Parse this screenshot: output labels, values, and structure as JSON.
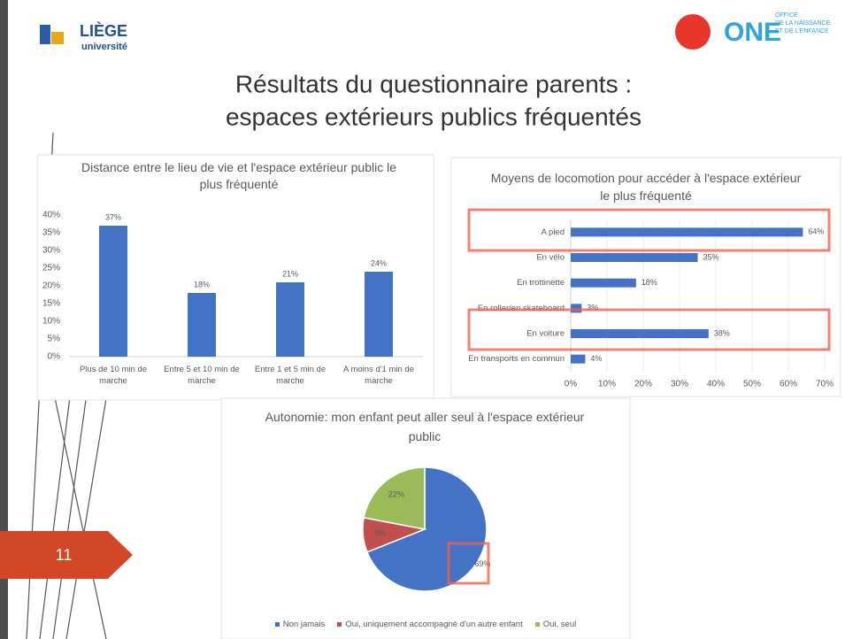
{
  "slide": {
    "logo_left": {
      "name": "LIÈGE",
      "sub": "université"
    },
    "logo_right": {
      "name": "ONE",
      "lines": [
        "OFFICE",
        "DE LA NAISSANCE",
        "ET DE L'ENFANCE"
      ]
    },
    "title_lines": [
      "Résultats du questionnaire parents :",
      "espaces extérieurs publics fréquentés"
    ],
    "number": "11"
  },
  "chart_data": [
    {
      "type": "bar",
      "title": "Distance entre le lieu de vie et l'espace extérieur public le plus fréquenté",
      "categories": [
        "Plus de 10 min de marche",
        "Entre 5 et 10 min de marche",
        "Entre 1 et 5 min de marche",
        "A moins d'1 min de marche"
      ],
      "values": [
        37,
        18,
        21,
        24
      ],
      "value_labels": [
        "37%",
        "18%",
        "21%",
        "24%"
      ],
      "color": "#4472c4",
      "ylim": [
        0,
        40
      ],
      "yticks": [
        {
          "value": 0,
          "label": "0%"
        },
        {
          "value": 5,
          "label": "5%"
        },
        {
          "value": 10,
          "label": "10%"
        },
        {
          "value": 15,
          "label": "15%"
        },
        {
          "value": 20,
          "label": "20%"
        },
        {
          "value": 25,
          "label": "25%"
        },
        {
          "value": 30,
          "label": "30%"
        },
        {
          "value": 35,
          "label": "35%"
        },
        {
          "value": 40,
          "label": "40%"
        }
      ],
      "grid": false
    },
    {
      "type": "hbar",
      "title": "Moyens de locomotion pour accéder à l'espace extérieur le plus fréquenté",
      "categories": [
        "A pied",
        "En vélo",
        "En trottinette",
        "En roller/en skateboard",
        "En voiture",
        "En transports en commun"
      ],
      "values": [
        64,
        35,
        18,
        3,
        38,
        4
      ],
      "value_labels": [
        "64%",
        "35%",
        "18%",
        "3%",
        "38%",
        "4%"
      ],
      "color": "#4472c4",
      "xlim": [
        0,
        70
      ],
      "xticks": [
        {
          "value": 0,
          "label": "0%"
        },
        {
          "value": 10,
          "label": "10%"
        },
        {
          "value": 20,
          "label": "20%"
        },
        {
          "value": 30,
          "label": "30%"
        },
        {
          "value": 40,
          "label": "40%"
        },
        {
          "value": 50,
          "label": "50%"
        },
        {
          "value": 60,
          "label": "60%"
        },
        {
          "value": 70,
          "label": "70%"
        }
      ],
      "grid": true
    },
    {
      "type": "pie",
      "title": "Autonomie: mon enfant peut aller seul à l'espace extérieur public",
      "categories": [
        "Non jamais",
        "Oui, uniquement accompagné d'un autre enfant",
        "Oui, seul"
      ],
      "values": [
        69,
        9,
        22
      ],
      "value_labels": [
        "69%",
        "9%",
        "22%"
      ],
      "colors": [
        "#4472c4",
        "#c0504d",
        "#9bbb59"
      ],
      "legend": "bottom"
    }
  ]
}
